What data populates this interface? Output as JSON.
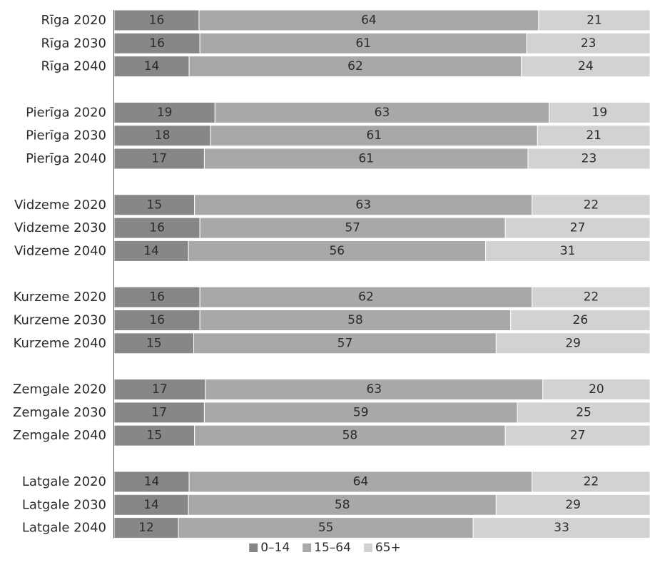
{
  "chart_data": {
    "type": "bar",
    "orientation": "horizontal",
    "stacked": "percent",
    "categories": [
      "Rīga 2020",
      "Rīga 2030",
      "Rīga 2040",
      "Pierīga 2020",
      "Pierīga 2030",
      "Pierīga 2040",
      "Vidzeme 2020",
      "Vidzeme 2030",
      "Vidzeme 2040",
      "Kurzeme 2020",
      "Kurzeme 2030",
      "Kurzeme 2040",
      "Zemgale 2020",
      "Zemgale 2030",
      "Zemgale 2040",
      "Latgale 2020",
      "Latgale 2030",
      "Latgale 2040"
    ],
    "groups_of": 3,
    "series": [
      {
        "name": "0–14",
        "color": "#878787",
        "values": [
          16,
          16,
          14,
          19,
          18,
          17,
          15,
          16,
          14,
          16,
          16,
          15,
          17,
          17,
          15,
          14,
          14,
          12
        ]
      },
      {
        "name": "15–64",
        "color": "#a8a8a8",
        "values": [
          64,
          61,
          62,
          63,
          61,
          61,
          63,
          57,
          56,
          62,
          58,
          57,
          63,
          59,
          58,
          64,
          58,
          55
        ]
      },
      {
        "name": "65+",
        "color": "#d2d2d2",
        "values": [
          21,
          23,
          24,
          19,
          21,
          23,
          22,
          27,
          31,
          22,
          26,
          29,
          20,
          25,
          27,
          22,
          29,
          33
        ]
      }
    ],
    "legend_position": "bottom",
    "grid": false
  }
}
